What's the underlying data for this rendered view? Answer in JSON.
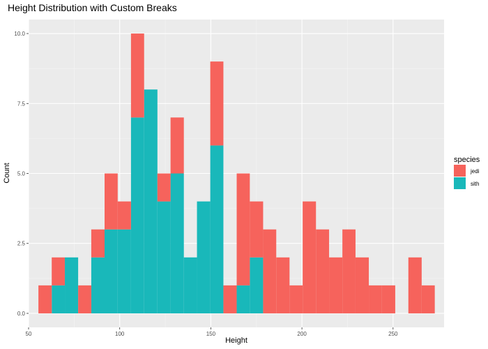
{
  "chart_data": {
    "type": "bar",
    "subtype": "stacked-histogram",
    "title": "Height Distribution with Custom Breaks",
    "xlabel": "Height",
    "ylabel": "Count",
    "xlim": [
      50,
      278
    ],
    "ylim": [
      -0.5,
      10.5
    ],
    "xticks": [
      50,
      100,
      150,
      200,
      250
    ],
    "yticks": [
      0,
      2.5,
      5,
      7.5,
      10
    ],
    "ytick_labels": [
      "0.0",
      "2.5",
      "5.0",
      "7.5",
      "10.0"
    ],
    "grid": true,
    "legend_position": "right",
    "legend_title": "species",
    "bin_edges": [
      55.4,
      62.7,
      69.9,
      77.2,
      84.4,
      91.7,
      98.9,
      106.2,
      113.4,
      120.7,
      127.9,
      135.2,
      142.4,
      149.7,
      156.9,
      164.2,
      171.4,
      178.7,
      185.9,
      193.2,
      200.4,
      207.7,
      214.9,
      222.2,
      229.4,
      236.7,
      243.9,
      251.2,
      258.4,
      265.7,
      272.9
    ],
    "series": [
      {
        "name": "sith",
        "color": "#19B8BA",
        "values": [
          0,
          1,
          2,
          0,
          2,
          3,
          3,
          7,
          8,
          4,
          5,
          2,
          4,
          6,
          0,
          1,
          2,
          0,
          0,
          0,
          0,
          0,
          0,
          0,
          0,
          0,
          0,
          0,
          0,
          0
        ]
      },
      {
        "name": "jedi",
        "color": "#F6635C",
        "values": [
          1,
          1,
          0,
          1,
          1,
          2,
          1,
          3,
          0,
          1,
          2,
          0,
          0,
          3,
          1,
          4,
          2,
          3,
          2,
          1,
          4,
          3,
          2,
          3,
          2,
          1,
          1,
          0,
          2,
          1
        ]
      }
    ]
  }
}
